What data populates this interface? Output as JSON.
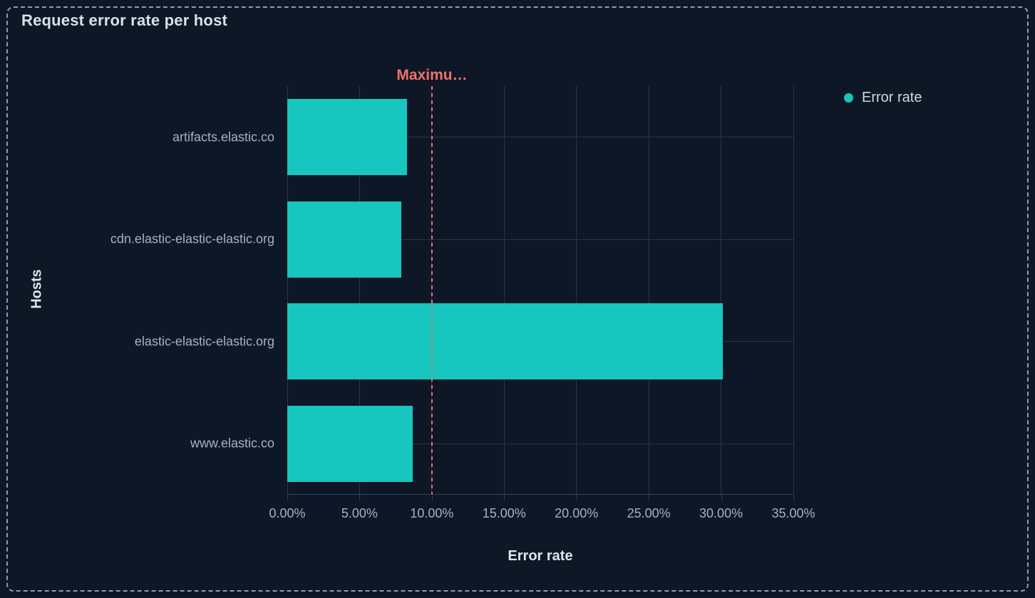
{
  "panel": {
    "title": "Request error rate per host"
  },
  "legend": {
    "position": "top-right",
    "items": [
      {
        "label": "Error rate",
        "color": "#17c6bf"
      }
    ]
  },
  "chart_data": {
    "type": "bar",
    "orientation": "horizontal",
    "title": "Request error rate per host",
    "xlabel": "Error rate",
    "ylabel": "Hosts",
    "categories": [
      "artifacts.elastic.co",
      "cdn.elastic-elastic-elastic.org",
      "elastic-elastic-elastic.org",
      "www.elastic.co"
    ],
    "series": [
      {
        "name": "Error rate",
        "color": "#17c6bf",
        "values": [
          8.3,
          7.9,
          30.1,
          8.7
        ]
      }
    ],
    "value_unit": "%",
    "xlim": [
      0,
      35
    ],
    "x_tick_values": [
      0,
      5,
      10,
      15,
      20,
      25,
      30,
      35
    ],
    "x_tick_labels": [
      "0.00%",
      "5.00%",
      "10.00%",
      "15.00%",
      "20.00%",
      "25.00%",
      "30.00%",
      "35.00%"
    ],
    "grid": true,
    "legend_position": "top-right",
    "threshold": {
      "label": "Maximu…",
      "value": 10,
      "color": "#f0716c",
      "style": "dashed"
    }
  },
  "colors": {
    "background": "#0e1726",
    "panel_border": "#8e9bb1",
    "bar": "#17c6bf",
    "threshold": "#f0716c",
    "gridline": "#2a3547",
    "axis_line": "#333f53",
    "tick_text": "#a7b1c5",
    "title_text": "#d9e0ea"
  }
}
